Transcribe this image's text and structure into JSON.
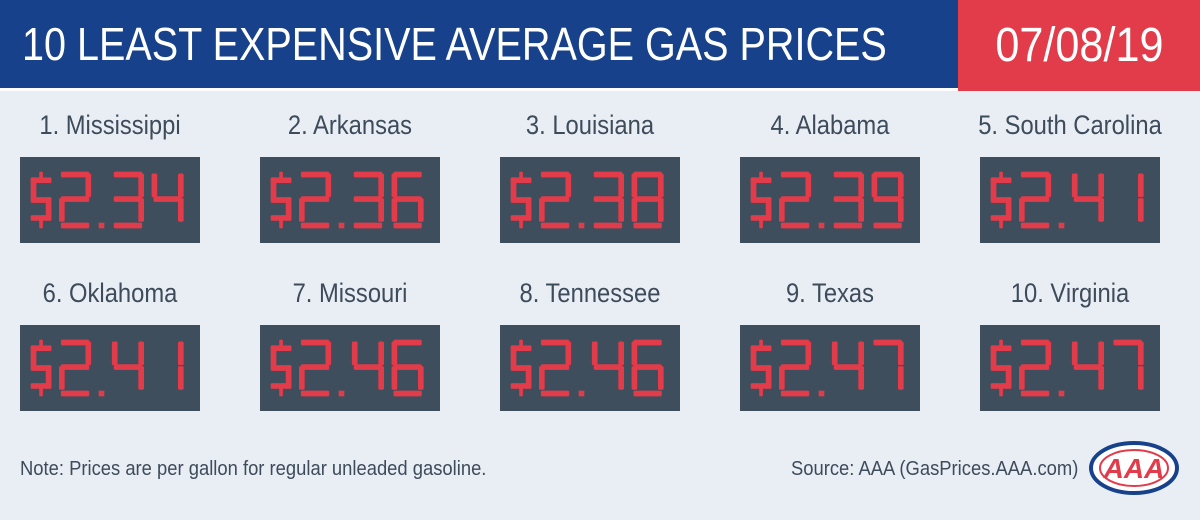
{
  "header": {
    "title": "10 LEAST EXPENSIVE AVERAGE GAS PRICES",
    "date": "07/08/19"
  },
  "colors": {
    "header_blue": "#17428b",
    "date_red": "#e23b4a",
    "panel_slate": "#3e4e5d",
    "digit_red": "#e23b4a",
    "background": "#e9eef5",
    "text": "#3d4b5a"
  },
  "states": [
    {
      "label": "1. Mississippi",
      "price": "$2.34"
    },
    {
      "label": "2. Arkansas",
      "price": "$2.36"
    },
    {
      "label": "3. Louisiana",
      "price": "$2.38"
    },
    {
      "label": "4. Alabama",
      "price": "$2.39"
    },
    {
      "label": "5. South Carolina",
      "price": "$2.41"
    },
    {
      "label": "6. Oklahoma",
      "price": "$2.41"
    },
    {
      "label": "7. Missouri",
      "price": "$2.46"
    },
    {
      "label": "8. Tennessee",
      "price": "$2.46"
    },
    {
      "label": "9. Texas",
      "price": "$2.47"
    },
    {
      "label": "10. Virginia",
      "price": "$2.47"
    }
  ],
  "footer": {
    "note": "Note: Prices are per gallon for regular unleaded gasoline.",
    "source": "Source: AAA (GasPrices.AAA.com)"
  },
  "logo": {
    "text": "AAA",
    "icon": "aaa-logo-icon"
  }
}
